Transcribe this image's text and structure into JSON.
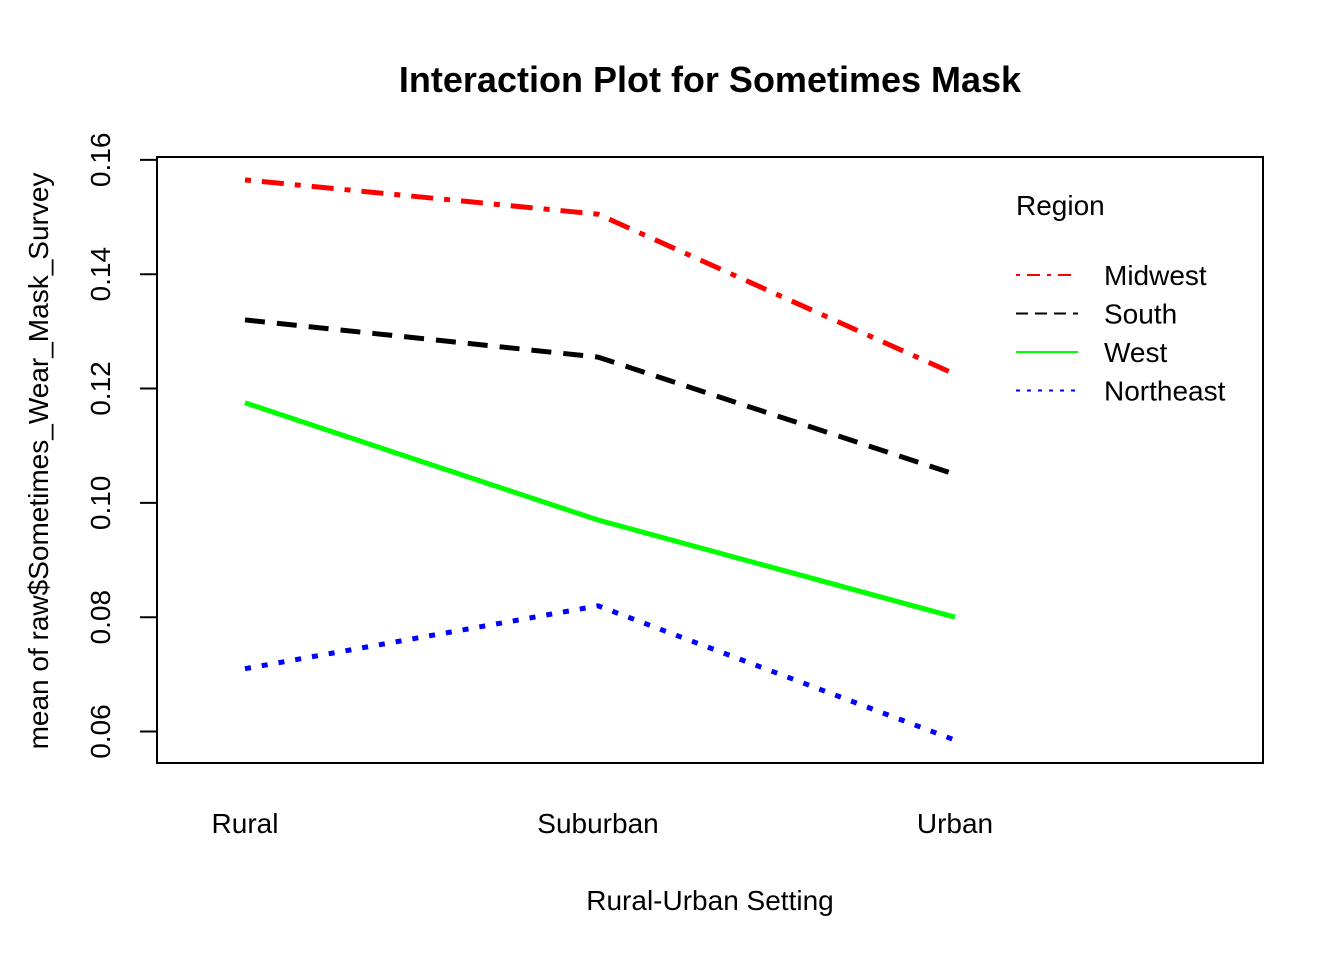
{
  "chart_data": {
    "type": "line",
    "title": "Interaction Plot for Sometimes Mask",
    "xlabel": "Rural-Urban Setting",
    "ylabel": "mean of  raw$Sometimes_Wear_Mask_Survey",
    "categories": [
      "Rural",
      "Suburban",
      "Urban"
    ],
    "yticks": [
      "0.06",
      "0.08",
      "0.10",
      "0.12",
      "0.14",
      "0.16"
    ],
    "ylim": [
      0.0545,
      0.1605
    ],
    "legend": {
      "title": "Region",
      "position": "top-right"
    },
    "series": [
      {
        "name": "Midwest",
        "values": [
          0.1565,
          0.1505,
          0.1225
        ],
        "color": "#ff0000",
        "dash": "dotdash"
      },
      {
        "name": "South",
        "values": [
          0.132,
          0.1255,
          0.105
        ],
        "color": "#000000",
        "dash": "dashed"
      },
      {
        "name": "West",
        "values": [
          0.1175,
          0.097,
          0.08
        ],
        "color": "#00ff00",
        "dash": "solid"
      },
      {
        "name": "Northeast",
        "values": [
          0.071,
          0.082,
          0.0585
        ],
        "color": "#0000ff",
        "dash": "dotted"
      }
    ]
  }
}
